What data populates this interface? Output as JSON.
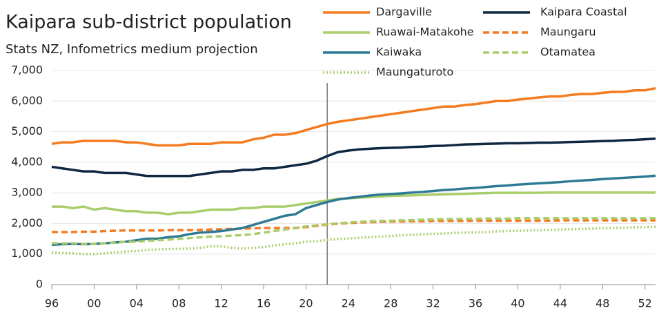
{
  "chart_data": {
    "type": "line",
    "title": "Kaipara sub-district population",
    "subtitle": "Stats NZ, Infometrics medium projection",
    "x": [
      1996,
      1997,
      1998,
      1999,
      2000,
      2001,
      2002,
      2003,
      2004,
      2005,
      2006,
      2007,
      2008,
      2009,
      2010,
      2011,
      2012,
      2013,
      2014,
      2015,
      2016,
      2017,
      2018,
      2019,
      2020,
      2021,
      2022,
      2023,
      2024,
      2025,
      2026,
      2027,
      2028,
      2029,
      2030,
      2031,
      2032,
      2033,
      2034,
      2035,
      2036,
      2037,
      2038,
      2039,
      2040,
      2041,
      2042,
      2043,
      2044,
      2045,
      2046,
      2047,
      2048,
      2049,
      2050,
      2051,
      2052,
      2053
    ],
    "xlim": [
      1996,
      2053
    ],
    "xticks": [
      {
        "value": 1996,
        "label": "96"
      },
      {
        "value": 2000,
        "label": "00"
      },
      {
        "value": 2004,
        "label": "04"
      },
      {
        "value": 2008,
        "label": "08"
      },
      {
        "value": 2012,
        "label": "12"
      },
      {
        "value": 2016,
        "label": "16"
      },
      {
        "value": 2020,
        "label": "20"
      },
      {
        "value": 2024,
        "label": "24"
      },
      {
        "value": 2028,
        "label": "28"
      },
      {
        "value": 2032,
        "label": "32"
      },
      {
        "value": 2036,
        "label": "36"
      },
      {
        "value": 2040,
        "label": "40"
      },
      {
        "value": 2044,
        "label": "44"
      },
      {
        "value": 2048,
        "label": "48"
      },
      {
        "value": 2052,
        "label": "52"
      }
    ],
    "ylim": [
      0,
      7000
    ],
    "yticks": [
      0,
      {
        "value": 1000,
        "label": "1,000"
      },
      {
        "value": 2000,
        "label": "2,000"
      },
      {
        "value": 3000,
        "label": "3,000"
      },
      {
        "value": 4000,
        "label": "4,000"
      },
      {
        "value": 5000,
        "label": "5,000"
      },
      {
        "value": 6000,
        "label": "6,000"
      },
      {
        "value": 7000,
        "label": "7,000"
      }
    ],
    "grid": true,
    "vline": 2022,
    "series": [
      {
        "name": "Dargaville",
        "color": "#f47b20",
        "dash": "solid",
        "values": [
          4600,
          4650,
          4650,
          4700,
          4700,
          4700,
          4700,
          4650,
          4650,
          4600,
          4550,
          4550,
          4550,
          4600,
          4600,
          4600,
          4650,
          4650,
          4650,
          4750,
          4800,
          4900,
          4900,
          4950,
          5050,
          5150,
          5250,
          5320,
          5370,
          5420,
          5470,
          5520,
          5570,
          5620,
          5670,
          5720,
          5770,
          5820,
          5820,
          5870,
          5900,
          5950,
          6000,
          6000,
          6050,
          6080,
          6120,
          6150,
          6150,
          6200,
          6230,
          6230,
          6270,
          6300,
          6300,
          6350,
          6350,
          6420
        ]
      },
      {
        "name": "Kaipara Coastal",
        "color": "#0e2841",
        "dash": "solid",
        "values": [
          3850,
          3800,
          3750,
          3700,
          3700,
          3650,
          3650,
          3650,
          3600,
          3550,
          3550,
          3550,
          3550,
          3550,
          3600,
          3650,
          3700,
          3700,
          3750,
          3750,
          3800,
          3800,
          3850,
          3900,
          3950,
          4050,
          4200,
          4330,
          4380,
          4420,
          4440,
          4460,
          4470,
          4480,
          4500,
          4510,
          4530,
          4540,
          4560,
          4580,
          4590,
          4600,
          4610,
          4620,
          4620,
          4630,
          4640,
          4640,
          4650,
          4660,
          4670,
          4680,
          4690,
          4700,
          4720,
          4730,
          4750,
          4770
        ]
      },
      {
        "name": "Ruawai-Matakohe",
        "color": "#a9cd6b",
        "dash": "solid",
        "values": [
          2550,
          2550,
          2500,
          2550,
          2450,
          2500,
          2450,
          2400,
          2400,
          2350,
          2350,
          2300,
          2350,
          2350,
          2400,
          2450,
          2450,
          2450,
          2500,
          2500,
          2550,
          2550,
          2550,
          2600,
          2650,
          2700,
          2750,
          2800,
          2820,
          2840,
          2860,
          2880,
          2900,
          2910,
          2920,
          2930,
          2940,
          2950,
          2960,
          2970,
          2980,
          2990,
          3000,
          3000,
          3000,
          3000,
          3000,
          3010,
          3010,
          3010,
          3010,
          3010,
          3010,
          3010,
          3010,
          3010,
          3010,
          3010
        ]
      },
      {
        "name": "Maungaru",
        "color": "#f47b20",
        "dash": "dashed",
        "values": [
          1720,
          1720,
          1720,
          1730,
          1730,
          1750,
          1760,
          1770,
          1770,
          1770,
          1770,
          1780,
          1780,
          1780,
          1790,
          1800,
          1810,
          1820,
          1830,
          1840,
          1850,
          1850,
          1850,
          1850,
          1880,
          1920,
          1960,
          1990,
          2010,
          2030,
          2040,
          2050,
          2060,
          2060,
          2070,
          2070,
          2080,
          2080,
          2080,
          2080,
          2090,
          2090,
          2090,
          2090,
          2090,
          2090,
          2090,
          2090,
          2100,
          2100,
          2100,
          2100,
          2100,
          2100,
          2100,
          2100,
          2100,
          2100
        ]
      },
      {
        "name": "Kaiwaka",
        "color": "#2e7a94",
        "dash": "solid",
        "values": [
          1300,
          1320,
          1330,
          1320,
          1330,
          1350,
          1380,
          1400,
          1450,
          1500,
          1500,
          1550,
          1580,
          1650,
          1700,
          1720,
          1750,
          1800,
          1850,
          1950,
          2050,
          2150,
          2250,
          2300,
          2500,
          2600,
          2700,
          2780,
          2830,
          2870,
          2910,
          2940,
          2960,
          2980,
          3010,
          3030,
          3060,
          3090,
          3110,
          3140,
          3160,
          3190,
          3220,
          3240,
          3270,
          3290,
          3310,
          3330,
          3350,
          3380,
          3400,
          3420,
          3450,
          3470,
          3490,
          3510,
          3530,
          3560
        ]
      },
      {
        "name": "Otamatea",
        "color": "#a9cd6b",
        "dash": "dashed",
        "values": [
          1350,
          1350,
          1350,
          1330,
          1330,
          1350,
          1370,
          1400,
          1400,
          1430,
          1450,
          1470,
          1500,
          1520,
          1550,
          1570,
          1580,
          1600,
          1620,
          1650,
          1700,
          1750,
          1800,
          1850,
          1900,
          1940,
          1970,
          2000,
          2030,
          2050,
          2070,
          2080,
          2090,
          2100,
          2110,
          2120,
          2130,
          2140,
          2140,
          2150,
          2150,
          2160,
          2160,
          2160,
          2170,
          2170,
          2170,
          2170,
          2170,
          2170,
          2170,
          2170,
          2170,
          2170,
          2170,
          2170,
          2170,
          2170
        ]
      },
      {
        "name": "Maungaturoto",
        "color": "#a9cd6b",
        "dash": "dotted",
        "values": [
          1050,
          1030,
          1020,
          1000,
          1000,
          1020,
          1050,
          1080,
          1100,
          1130,
          1150,
          1160,
          1170,
          1180,
          1200,
          1250,
          1250,
          1200,
          1180,
          1200,
          1230,
          1280,
          1320,
          1350,
          1400,
          1420,
          1460,
          1490,
          1510,
          1530,
          1550,
          1570,
          1590,
          1610,
          1630,
          1640,
          1660,
          1670,
          1690,
          1700,
          1710,
          1720,
          1740,
          1750,
          1760,
          1770,
          1780,
          1790,
          1800,
          1810,
          1820,
          1830,
          1840,
          1850,
          1860,
          1870,
          1880,
          1890
        ]
      }
    ]
  }
}
